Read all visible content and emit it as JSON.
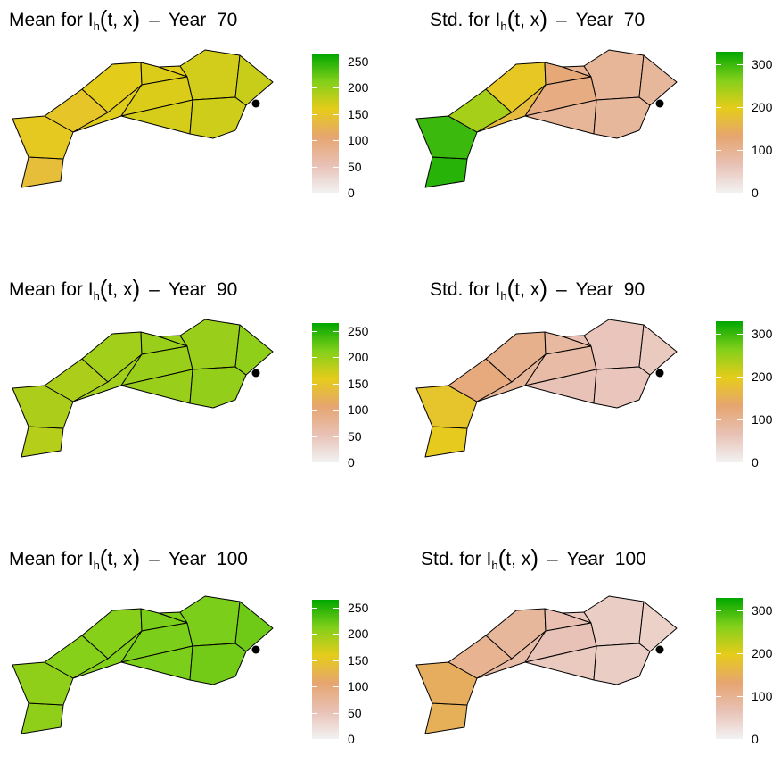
{
  "chart_data": [
    {
      "type": "choropleth",
      "title": {
        "prefix": "Mean for",
        "var": "I",
        "sub": "h",
        "args": "t, x",
        "year_label": "Year",
        "year": "70"
      },
      "legend": {
        "ticks": [
          "0",
          "50",
          "100",
          "150",
          "200",
          "250"
        ],
        "range": [
          0,
          265
        ]
      },
      "region_values": [
        140,
        155,
        150,
        160,
        162,
        165,
        165,
        168,
        160,
        170,
        172,
        175
      ]
    },
    {
      "type": "choropleth",
      "title": {
        "prefix": "Std. for",
        "var": "I",
        "sub": "h",
        "args": "t, x",
        "year_label": "Year",
        "year": "70"
      },
      "legend": {
        "ticks": [
          "0",
          "100",
          "200",
          "300"
        ],
        "range": [
          0,
          330
        ]
      },
      "region_values": [
        310,
        300,
        240,
        190,
        170,
        125,
        115,
        95,
        100,
        95,
        90,
        90
      ]
    },
    {
      "type": "choropleth",
      "title": {
        "prefix": "Mean for",
        "var": "I",
        "sub": "h",
        "args": "t, x",
        "year_label": "Year",
        "year": "90"
      },
      "legend": {
        "ticks": [
          "0",
          "50",
          "100",
          "150",
          "200",
          "250"
        ],
        "range": [
          0,
          265
        ]
      },
      "region_values": [
        185,
        190,
        190,
        195,
        195,
        200,
        200,
        200,
        200,
        200,
        203,
        205
      ]
    },
    {
      "type": "choropleth",
      "title": {
        "prefix": "Std. for",
        "var": "I",
        "sub": "h",
        "args": "t, x",
        "year_label": "Year",
        "year": "90"
      },
      "legend": {
        "ticks": [
          "0",
          "100",
          "200",
          "300"
        ],
        "range": [
          0,
          330
        ]
      },
      "region_values": [
        195,
        185,
        120,
        105,
        95,
        85,
        80,
        65,
        70,
        60,
        60,
        55
      ]
    },
    {
      "type": "choropleth",
      "title": {
        "prefix": "Mean for",
        "var": "I",
        "sub": "h",
        "args": "t, x",
        "year_label": "Year",
        "year": "100"
      },
      "legend": {
        "ticks": [
          "0",
          "50",
          "100",
          "150",
          "200",
          "250"
        ],
        "range": [
          0,
          265
        ]
      },
      "region_values": [
        205,
        205,
        210,
        210,
        212,
        215,
        215,
        215,
        215,
        215,
        218,
        220
      ]
    },
    {
      "type": "choropleth",
      "title": {
        "prefix": "Std. for",
        "var": "I",
        "sub": "h",
        "args": "t, x",
        "year_label": "Year",
        "year": "100"
      },
      "legend": {
        "ticks": [
          "0",
          "100",
          "200",
          "300"
        ],
        "range": [
          0,
          330
        ]
      },
      "region_values": [
        150,
        145,
        100,
        90,
        80,
        70,
        65,
        55,
        58,
        50,
        50,
        45
      ]
    }
  ],
  "colors": {
    "palette": [
      "#F2F2F2",
      "#E8C1B5",
      "#E6A570",
      "#E6CC1A",
      "#82D01A",
      "#00A600"
    ],
    "marker": "#000000",
    "border": "#000000"
  }
}
